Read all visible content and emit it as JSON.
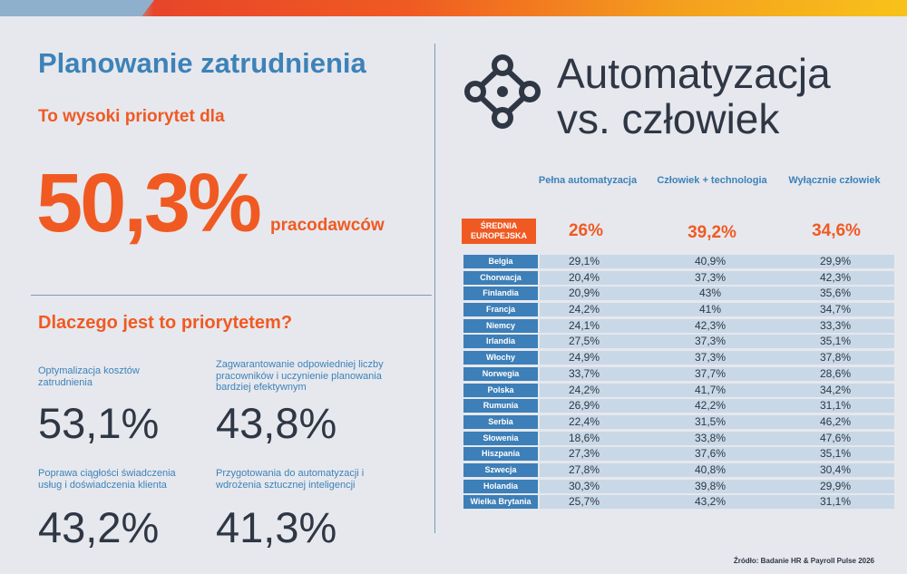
{
  "left": {
    "title": "Planowanie zatrudnienia",
    "subtitle": "To wysoki priorytet dla",
    "big_percent": "50,3%",
    "big_label": "pracodawców",
    "why_title": "Dlaczego jest to priorytetem?",
    "reasons": [
      {
        "label": "Optymalizacja kosztów zatrudnienia",
        "value": "53,1%"
      },
      {
        "label": "Zagwarantowanie odpowiedniej liczby pracowników i uczynienie planowania bardziej efektywnym",
        "value": "43,8%"
      },
      {
        "label": "Poprawa ciągłości świadczenia usług i doświadczenia klienta",
        "value": "43,2%"
      },
      {
        "label": "Przygotowania do automatyzacji i wdrożenia sztucznej inteligencji",
        "value": "41,3%"
      }
    ]
  },
  "right": {
    "title_line1": "Automatyzacja",
    "title_line2": "vs. człowiek",
    "logo_icon": "network-nodes-icon",
    "columns": [
      "Pełna automatyzacja",
      "Człowiek + technologia",
      "Wyłącznie człowiek"
    ],
    "average": {
      "label": "ŚREDNIA EUROPEJSKA",
      "values": [
        "26%",
        "39,2%",
        "34,6%"
      ]
    },
    "rows": [
      {
        "country": "Belgia",
        "values": [
          "29,1%",
          "40,9%",
          "29,9%"
        ]
      },
      {
        "country": "Chorwacja",
        "values": [
          "20,4%",
          "37,3%",
          "42,3%"
        ]
      },
      {
        "country": "Finlandia",
        "values": [
          "20,9%",
          "43%",
          "35,6%"
        ]
      },
      {
        "country": "Francja",
        "values": [
          "24,2%",
          "41%",
          "34,7%"
        ]
      },
      {
        "country": "Niemcy",
        "values": [
          "24,1%",
          "42,3%",
          "33,3%"
        ]
      },
      {
        "country": "Irlandia",
        "values": [
          "27,5%",
          "37,3%",
          "35,1%"
        ]
      },
      {
        "country": "Włochy",
        "values": [
          "24,9%",
          "37,3%",
          "37,8%"
        ]
      },
      {
        "country": "Norwegia",
        "values": [
          "33,7%",
          "37,7%",
          "28,6%"
        ]
      },
      {
        "country": "Polska",
        "values": [
          "24,2%",
          "41,7%",
          "34,2%"
        ]
      },
      {
        "country": "Rumunia",
        "values": [
          "26,9%",
          "42,2%",
          "31,1%"
        ]
      },
      {
        "country": "Serbia",
        "values": [
          "22,4%",
          "31,5%",
          "46,2%"
        ]
      },
      {
        "country": "Słowenia",
        "values": [
          "18,6%",
          "33,8%",
          "47,6%"
        ]
      },
      {
        "country": "Hiszpania",
        "values": [
          "27,3%",
          "37,6%",
          "35,1%"
        ]
      },
      {
        "country": "Szwecja",
        "values": [
          "27,8%",
          "40,8%",
          "30,4%"
        ]
      },
      {
        "country": "Holandia",
        "values": [
          "30,3%",
          "39,8%",
          "29,9%"
        ]
      },
      {
        "country": "Wielka Brytania",
        "values": [
          "25,7%",
          "43,2%",
          "31,1%"
        ]
      }
    ],
    "source": "Źródło: Badanie HR & Payroll Pulse 2026"
  },
  "colors": {
    "accent_orange": "#f05a22",
    "accent_blue": "#3d82b8",
    "dark_text": "#2f3744",
    "row_bg": "#c9d8e6"
  }
}
